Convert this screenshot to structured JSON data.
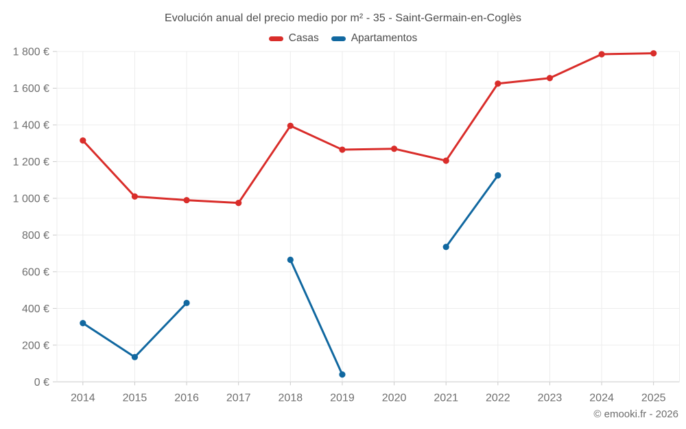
{
  "chart_data": {
    "type": "line",
    "title": "Evolución anual del precio medio por m² - 35 - Saint-Germain-en-Coglès",
    "categories": [
      "2014",
      "2015",
      "2016",
      "2017",
      "2018",
      "2019",
      "2020",
      "2021",
      "2022",
      "2023",
      "2024",
      "2025"
    ],
    "series": [
      {
        "name": "Casas",
        "color": "#d92d2a",
        "values": [
          1315,
          1010,
          990,
          975,
          1395,
          1265,
          1270,
          1205,
          1625,
          1655,
          1785,
          1790
        ]
      },
      {
        "name": "Apartamentos",
        "color": "#1168a0",
        "values": [
          320,
          135,
          430,
          null,
          665,
          40,
          null,
          735,
          1125,
          null,
          null,
          null
        ]
      }
    ],
    "xlabel": "",
    "ylabel": "",
    "ylim": [
      0,
      1800
    ],
    "ytick_step": 200,
    "ytick_labels": [
      "0 €",
      "200 €",
      "400 €",
      "600 €",
      "800 €",
      "1 000 €",
      "1 200 €",
      "1 400 €",
      "1 600 €",
      "1 800 €"
    ],
    "grid": true,
    "legend_position": "top-center",
    "grid_color": "#ececec",
    "axis_color": "#c9c9c9",
    "tick_text_color": "#6e6e6e",
    "title_color": "#4c4c4c"
  },
  "footer": {
    "copyright": "© emooki.fr - 2026"
  }
}
